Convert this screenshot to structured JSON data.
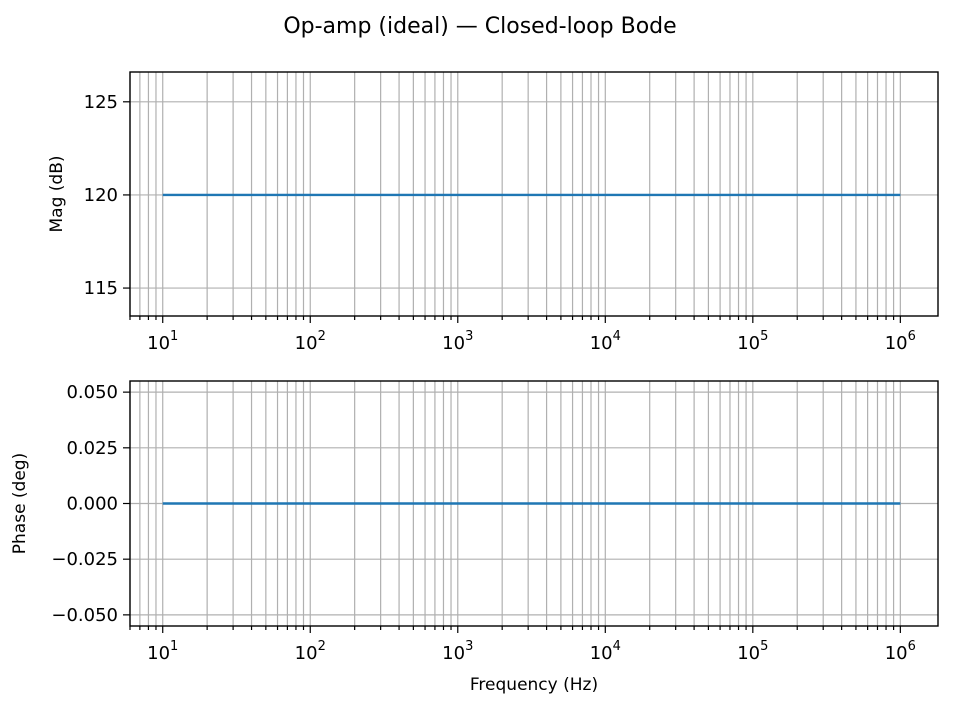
{
  "figure": {
    "suptitle": "Op-amp (ideal) — Closed-loop Bode"
  },
  "chart_data": [
    {
      "type": "line",
      "id": "magnitude",
      "title": "",
      "xlabel": "",
      "ylabel": "Mag (dB)",
      "xscale": "log",
      "xlim": [
        6,
        1800000
      ],
      "ylim": [
        113.5,
        126.6
      ],
      "grid": "both-major-and-minor-x",
      "xticks": [
        10,
        100,
        1000,
        10000,
        100000,
        1000000
      ],
      "xtick_labels": [
        {
          "base": "10",
          "exp": "1"
        },
        {
          "base": "10",
          "exp": "2"
        },
        {
          "base": "10",
          "exp": "3"
        },
        {
          "base": "10",
          "exp": "4"
        },
        {
          "base": "10",
          "exp": "5"
        },
        {
          "base": "10",
          "exp": "6"
        }
      ],
      "yticks": [
        115,
        120,
        125
      ],
      "ytick_labels": [
        "115",
        "120",
        "125"
      ],
      "series": [
        {
          "x": [
            10,
            1000000
          ],
          "y": [
            120,
            120
          ],
          "color": "#1f77b4"
        }
      ]
    },
    {
      "type": "line",
      "id": "phase",
      "title": "",
      "xlabel": "Frequency (Hz)",
      "ylabel": "Phase (deg)",
      "xscale": "log",
      "xlim": [
        6,
        1800000
      ],
      "ylim": [
        -0.055,
        0.055
      ],
      "grid": "both-major-and-minor-x",
      "xticks": [
        10,
        100,
        1000,
        10000,
        100000,
        1000000
      ],
      "xtick_labels": [
        {
          "base": "10",
          "exp": "1"
        },
        {
          "base": "10",
          "exp": "2"
        },
        {
          "base": "10",
          "exp": "3"
        },
        {
          "base": "10",
          "exp": "4"
        },
        {
          "base": "10",
          "exp": "5"
        },
        {
          "base": "10",
          "exp": "6"
        }
      ],
      "yticks": [
        -0.05,
        -0.025,
        0,
        0.025,
        0.05
      ],
      "ytick_labels": [
        "−0.050",
        "−0.025",
        "0.000",
        "0.025",
        "0.050"
      ],
      "series": [
        {
          "x": [
            10,
            1000000
          ],
          "y": [
            0,
            0
          ],
          "color": "#1f77b4"
        }
      ]
    }
  ]
}
